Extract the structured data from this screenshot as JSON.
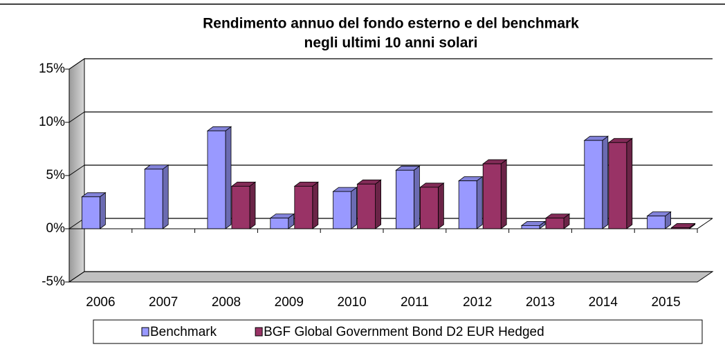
{
  "chart_data": {
    "type": "bar",
    "title": [
      "Rendimento annuo del fondo esterno e del benchmark",
      "negli ultimi 10 anni solari"
    ],
    "categories": [
      "2006",
      "2007",
      "2008",
      "2009",
      "2010",
      "2011",
      "2012",
      "2013",
      "2014",
      "2015"
    ],
    "series": [
      {
        "name": "Benchmark",
        "color": "#9999ff",
        "values": [
          3.0,
          5.6,
          9.2,
          1.0,
          3.5,
          5.5,
          4.5,
          0.3,
          8.3,
          1.2
        ]
      },
      {
        "name": "BGF Global Government Bond D2 EUR Hedged",
        "color": "#993366",
        "values": [
          null,
          null,
          4.0,
          4.0,
          4.2,
          3.9,
          6.1,
          1.0,
          8.1,
          0.1
        ]
      }
    ],
    "ylim": [
      -5,
      15
    ],
    "yticks": [
      {
        "value": -5,
        "label": "-5%"
      },
      {
        "value": 0,
        "label": "0%"
      },
      {
        "value": 5,
        "label": "5%"
      },
      {
        "value": 10,
        "label": "10%"
      },
      {
        "value": 15,
        "label": "15%"
      }
    ],
    "grid": true
  }
}
